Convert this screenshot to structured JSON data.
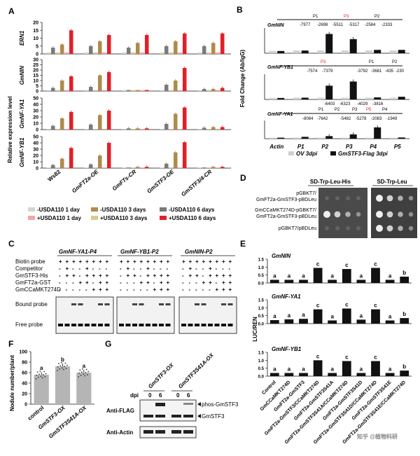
{
  "panel_letters": [
    "A",
    "B",
    "C",
    "D",
    "E",
    "F",
    "G"
  ],
  "colors": {
    "c1": "#d4d4d4",
    "c2": "#7a7a7a",
    "c3": "#d6cc90",
    "c4": "#b08a4c",
    "c5": "#f3a6a8",
    "c6": "#e31f26",
    "black": "#111111",
    "grey": "#cfcfcf",
    "accent": "#e31f26"
  },
  "panelA": {
    "ylabel": "Relative expression level",
    "categories": [
      "Ws82",
      "GmFT2a-OE",
      "GmFTs-CR",
      "GmSTF3-OE",
      "GmSTF3/4-CR"
    ],
    "legend": [
      "-USDA110 1 day",
      "-USDA110 3 days",
      "-USDA110 6 days",
      "+USDA110 1 day",
      "+USDA110 3 days",
      "+USDA110 6 days"
    ]
  },
  "panelB": {
    "ylabel": "Fold Change (Ab/IgG)",
    "categories": [
      "Actin",
      "P1",
      "P2",
      "P3",
      "P4",
      "P5"
    ],
    "legend": [
      "OV 3dpi",
      "GmSTF3-Flag 3dpi"
    ],
    "genes": [
      {
        "name": "GmNIN",
        "labels": [
          "P1",
          "P3",
          "P2"
        ],
        "coords": [
          "-7977",
          "-2698",
          "-5511",
          "-5317",
          "-2584",
          "-2333"
        ]
      },
      {
        "name": "GmNF-YB1",
        "labels": [
          "P3",
          "P1",
          "P2"
        ],
        "coords": [
          "-7574",
          "-7379",
          "-3792",
          "-3681",
          "-435",
          "-230"
        ]
      },
      {
        "name": "GmNF-YA1",
        "labels": [
          "P1",
          "P2",
          "P3",
          "P5",
          "P4"
        ],
        "coords_top": [
          "-6403",
          "-6323",
          "-4029",
          "-3816"
        ],
        "coords_bottom": [
          "-8084",
          "-7642",
          "-5482",
          "-5278",
          "-2083",
          "-1949"
        ]
      }
    ]
  },
  "panelC": {
    "headers": [
      "GmNF-YA1-P4",
      "GmNF-YB1-P2",
      "GmNIN-P2"
    ],
    "rows": [
      "Biotin probe",
      "Competitor",
      "GmSTF3-His",
      "GmFT2a-GST",
      "GmCCaMKT274D"
    ],
    "signs": [
      [
        "+",
        "+",
        "+",
        "+",
        "+",
        "+",
        "+",
        "+"
      ],
      [
        "-",
        "+",
        "-",
        "-",
        "+",
        "-",
        "-",
        "-"
      ],
      [
        "-",
        "+",
        "+",
        "-",
        "+",
        "+",
        "+",
        "+"
      ],
      [
        "-",
        "-",
        "-",
        "+",
        "+",
        "-",
        "+",
        "+"
      ],
      [
        "-",
        "-",
        "-",
        "-",
        "-",
        "+",
        "+",
        "+"
      ]
    ],
    "bound_label": "Bound probe",
    "free_label": "Free probe"
  },
  "panelD": {
    "col_headers": [
      "SD-Trp-Leu-His",
      "SD-Trp-Leu"
    ],
    "rows": [
      "pGBKT7/\nGmFT2a-GmSTF3-pBDLeu",
      "GmCCaMKT274D-pGBKT7/\nGmFT2a-GmSTF3-pBDLeu",
      "pGBKT7/pBDLeu"
    ]
  },
  "panelE": {
    "ylabel": "LUC/REN",
    "categories": [
      "Control",
      "GmCCaMKT274D",
      "GmFT2a-GmSTF3",
      "GmFT2a-GmSTF3/CCaMKT274D",
      "GmFT2a-GmSTF3S41A",
      "GmFT2a-GmSTF3S41A/CCaMKT274D",
      "GmFT2a-GmSTF3S41D",
      "GmFT2a-GmSTF3S41D/CCaMKT274D",
      "GmFT2a-GmSTF3S41E",
      "GmFT2a-GmSTF3S41E/CCaMKT274D"
    ],
    "subpanels": [
      {
        "gene": "GmNIN",
        "letters": [
          "a",
          "a",
          "a",
          "c",
          "a",
          "c",
          "a",
          "c",
          "a",
          "b"
        ]
      },
      {
        "gene": "GmNF-YA1",
        "letters": [
          "a",
          "a",
          "a",
          "c",
          "a",
          "c",
          "a",
          "c",
          "a",
          "b"
        ]
      },
      {
        "gene": "GmNF-YB1",
        "letters": [
          "a",
          "a",
          "a",
          "c",
          "a",
          "c",
          "a",
          "c",
          "a",
          "b"
        ]
      }
    ]
  },
  "panelF": {
    "ylabel": "Nodule number/plant",
    "categories": [
      "control",
      "GmSTF3-OX",
      "GmSTF3S41A-OX"
    ],
    "letters": [
      "a",
      "b",
      "a"
    ]
  },
  "panelG": {
    "samples": [
      "GmSTF3-OX",
      "GmSTF3S41A-OX"
    ],
    "dpi_label": "dpi",
    "dpi": [
      "0",
      "6",
      "0",
      "6"
    ],
    "rows": [
      "Anti-FLAG",
      "Anti-Actin"
    ],
    "bands": [
      "phos-GmSTF3",
      "GmSTF3"
    ]
  },
  "watermark": "知乎 @植物科研",
  "chart_data": [
    {
      "type": "bar",
      "title": "ERN1",
      "categories": [
        "Ws82",
        "GmFT2a-OE",
        "GmFTs-CR",
        "GmSTF3-OE",
        "GmSTF3/4-CR"
      ],
      "ylim": [
        0,
        20
      ],
      "series": [
        {
          "name": "-USDA110 1 day",
          "values": [
            1,
            1,
            1,
            1,
            1
          ]
        },
        {
          "name": "+USDA110 1 day",
          "values": [
            4,
            5,
            4,
            5,
            5
          ]
        },
        {
          "name": "-USDA110 3 days",
          "values": [
            1,
            1,
            1,
            1,
            1
          ]
        },
        {
          "name": "+USDA110 3 days",
          "values": [
            6,
            8,
            7,
            8,
            7
          ]
        },
        {
          "name": "-USDA110 6 days",
          "values": [
            1,
            1,
            1,
            1,
            1
          ]
        },
        {
          "name": "+USDA110 6 days",
          "values": [
            15,
            12,
            12,
            13,
            13
          ]
        }
      ]
    },
    {
      "type": "bar",
      "title": "GmNIN",
      "categories": [
        "Ws82",
        "GmFT2a-OE",
        "GmFTs-CR",
        "GmSTF3-OE",
        "GmSTF3/4-CR"
      ],
      "ylim": [
        0,
        30
      ],
      "series": [
        {
          "name": "-USDA110 1 day",
          "values": [
            1,
            1,
            1,
            1,
            1
          ]
        },
        {
          "name": "+USDA110 1 day",
          "values": [
            3,
            4,
            1,
            6,
            2
          ]
        },
        {
          "name": "-USDA110 3 days",
          "values": [
            1,
            1,
            1,
            1,
            1
          ]
        },
        {
          "name": "+USDA110 3 days",
          "values": [
            10,
            15,
            1,
            10,
            2
          ]
        },
        {
          "name": "-USDA110 6 days",
          "values": [
            1,
            1,
            1,
            1,
            1
          ]
        },
        {
          "name": "+USDA110 6 days",
          "values": [
            14,
            18,
            1,
            22,
            3
          ]
        }
      ]
    },
    {
      "type": "bar",
      "title": "GmNF-YA1",
      "categories": [
        "Ws82",
        "GmFT2a-OE",
        "GmFTs-CR",
        "GmSTF3-OE",
        "GmSTF3/4-CR"
      ],
      "ylim": [
        0,
        50
      ],
      "series": [
        {
          "name": "-USDA110 1 day",
          "values": [
            1,
            1,
            1,
            1,
            1
          ]
        },
        {
          "name": "+USDA110 1 day",
          "values": [
            6,
            8,
            2,
            9,
            3
          ]
        },
        {
          "name": "-USDA110 3 days",
          "values": [
            1,
            1,
            1,
            1,
            1
          ]
        },
        {
          "name": "+USDA110 3 days",
          "values": [
            18,
            23,
            2,
            25,
            4
          ]
        },
        {
          "name": "-USDA110 6 days",
          "values": [
            1,
            1,
            1,
            1,
            1
          ]
        },
        {
          "name": "+USDA110 6 days",
          "values": [
            28,
            30,
            2,
            35,
            4
          ]
        }
      ]
    },
    {
      "type": "bar",
      "title": "GmNF-YB1",
      "categories": [
        "Ws82",
        "GmFT2a-OE",
        "GmFTs-CR",
        "GmSTF3-OE",
        "GmSTF3/4-CR"
      ],
      "ylim": [
        0,
        50
      ],
      "series": [
        {
          "name": "-USDA110 1 day",
          "values": [
            1,
            1,
            1,
            1,
            1
          ]
        },
        {
          "name": "+USDA110 1 day",
          "values": [
            5,
            6,
            1,
            7,
            1
          ]
        },
        {
          "name": "-USDA110 3 days",
          "values": [
            1,
            1,
            1,
            1,
            1
          ]
        },
        {
          "name": "+USDA110 3 days",
          "values": [
            15,
            20,
            2,
            25,
            2
          ]
        },
        {
          "name": "-USDA110 6 days",
          "values": [
            1,
            1,
            1,
            1,
            1
          ]
        },
        {
          "name": "+USDA110 6 days",
          "values": [
            32,
            40,
            2,
            41,
            2
          ]
        }
      ]
    },
    {
      "type": "bar",
      "title": "GmNIN",
      "categories": [
        "Actin",
        "P1",
        "P2",
        "P3",
        "P4",
        "P5"
      ],
      "ylim": [
        0,
        10
      ],
      "series": [
        {
          "name": "OV 3dpi",
          "values": [
            1,
            1.2,
            1.2,
            1.2,
            1.2,
            1.2
          ]
        },
        {
          "name": "GmSTF3-Flag 3dpi",
          "values": [
            1,
            1.2,
            8.6,
            6.3,
            1.5,
            1.5
          ]
        }
      ]
    },
    {
      "type": "bar",
      "title": "GmNF-YB1",
      "categories": [
        "Actin",
        "P1",
        "P2",
        "P3",
        "P4",
        "P5"
      ],
      "ylim": [
        0,
        15
      ],
      "series": [
        {
          "name": "OV 3dpi",
          "values": [
            1,
            1.2,
            1.2,
            1.2,
            1.2,
            1.2
          ]
        },
        {
          "name": "GmSTF3-Flag 3dpi",
          "values": [
            1,
            1.2,
            9.2,
            12,
            1.4,
            1.8
          ]
        }
      ]
    },
    {
      "type": "bar",
      "title": "GmNF-YA1",
      "categories": [
        "Actin",
        "P1",
        "P2",
        "P3",
        "P4",
        "P5"
      ],
      "ylim": [
        0,
        15
      ],
      "series": [
        {
          "name": "OV 3dpi",
          "values": [
            1,
            1,
            1,
            1,
            1,
            1
          ]
        },
        {
          "name": "GmSTF3-Flag 3dpi",
          "values": [
            1,
            1.8,
            2.5,
            4.2,
            11,
            1.2
          ]
        }
      ]
    },
    {
      "type": "bar",
      "title": "GmNIN",
      "ylabel": "LUC/REN",
      "categories": [
        "Control",
        "GmCCaMKT274D",
        "GmFT2a-GmSTF3",
        "GmFT2a-GmSTF3/CCaMKT274D",
        "GmFT2a-GmSTF3S41A",
        "GmFT2a-GmSTF3S41A/CCaMKT274D",
        "GmFT2a-GmSTF3S41D",
        "GmFT2a-GmSTF3S41D/CCaMKT274D",
        "GmFT2a-GmSTF3S41E",
        "GmFT2a-GmSTF3S41E/CCaMKT274D"
      ],
      "values": [
        0.2,
        0.2,
        0.2,
        0.95,
        0.2,
        0.88,
        0.2,
        0.95,
        0.2,
        0.4
      ],
      "ylim": [
        0,
        1.5
      ]
    },
    {
      "type": "bar",
      "title": "GmNF-YA1",
      "ylabel": "LUC/REN",
      "categories": [
        "Control",
        "GmCCaMKT274D",
        "GmFT2a-GmSTF3",
        "GmFT2a-GmSTF3/CCaMKT274D",
        "GmFT2a-GmSTF3S41A",
        "GmFT2a-GmSTF3S41A/CCaMKT274D",
        "GmFT2a-GmSTF3S41D",
        "GmFT2a-GmSTF3S41D/CCaMKT274D",
        "GmFT2a-GmSTF3S41E",
        "GmFT2a-GmSTF3S41E/CCaMKT274D"
      ],
      "values": [
        0.22,
        0.27,
        0.3,
        0.9,
        0.2,
        0.95,
        0.25,
        0.9,
        0.2,
        0.35
      ],
      "ylim": [
        0,
        1.5
      ]
    },
    {
      "type": "bar",
      "title": "GmNF-YB1",
      "ylabel": "LUC/REN",
      "categories": [
        "Control",
        "GmCCaMKT274D",
        "GmFT2a-GmSTF3",
        "GmFT2a-GmSTF3/CCaMKT274D",
        "GmFT2a-GmSTF3S41A",
        "GmFT2a-GmSTF3S41A/CCaMKT274D",
        "GmFT2a-GmSTF3S41D",
        "GmFT2a-GmSTF3S41D/CCaMKT274D",
        "GmFT2a-GmSTF3S41E",
        "GmFT2a-GmSTF3S41E/CCaMKT274D"
      ],
      "values": [
        0.2,
        0.2,
        0.2,
        1.0,
        0.2,
        0.95,
        0.2,
        0.95,
        0.2,
        0.35
      ],
      "ylim": [
        0,
        1.5
      ]
    },
    {
      "type": "bar",
      "ylabel": "Nodule number/plant",
      "categories": [
        "control",
        "GmSTF3-OX",
        "GmSTF3S41A-OX"
      ],
      "values": [
        56,
        72,
        60
      ],
      "ylim": [
        0,
        100
      ]
    }
  ]
}
